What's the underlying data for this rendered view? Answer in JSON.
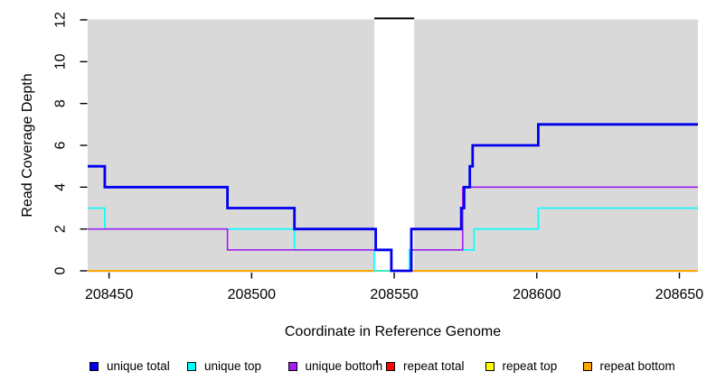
{
  "chart_data": {
    "type": "line",
    "subtype": "step",
    "title": "",
    "xlabel": "Coordinate in Reference Genome",
    "ylabel": "Read Coverage Depth",
    "xlim": [
      208442.5,
      208656.5
    ],
    "ylim": [
      0,
      12
    ],
    "x_ticks": [
      208450,
      208500,
      208550,
      208600,
      208650
    ],
    "y_ticks": [
      0,
      2,
      4,
      6,
      8,
      10,
      12
    ],
    "grid": "off",
    "plot_bg_color": "#d9d9d9",
    "repeat_region_band": {
      "x0": 208543,
      "x1": 208557,
      "color": "#ffffff",
      "clipped_peak_marker": {
        "y": 12,
        "color": "#000000"
      }
    },
    "series": [
      {
        "name": "repeat total",
        "color": "#ff0000",
        "width": 1.6,
        "points": [
          [
            208442.5,
            0
          ],
          [
            208656.5,
            0
          ]
        ]
      },
      {
        "name": "repeat top",
        "color": "#ffff00",
        "width": 1.6,
        "points": [
          [
            208442.5,
            0
          ],
          [
            208656.5,
            0
          ]
        ]
      },
      {
        "name": "repeat bottom",
        "color": "#ffa500",
        "width": 1.8,
        "points": [
          [
            208442.5,
            0
          ],
          [
            208656.5,
            0
          ]
        ]
      },
      {
        "name": "unique top",
        "color": "#00ffff",
        "width": 1.6,
        "points": [
          [
            208442.5,
            3
          ],
          [
            208448.5,
            3
          ],
          [
            208448.5,
            2
          ],
          [
            208515,
            2
          ],
          [
            208515,
            1
          ],
          [
            208543,
            1
          ],
          [
            208543,
            0
          ],
          [
            208555.3,
            0
          ],
          [
            208555.3,
            1
          ],
          [
            208578,
            1
          ],
          [
            208578,
            2
          ],
          [
            208600.5,
            2
          ],
          [
            208600.5,
            3
          ],
          [
            208656.5,
            3
          ]
        ]
      },
      {
        "name": "unique bottom",
        "color": "#a020f0",
        "width": 1.6,
        "points": [
          [
            208442.5,
            2
          ],
          [
            208491.5,
            2
          ],
          [
            208491.5,
            1
          ],
          [
            208549,
            1
          ],
          [
            208549,
            0
          ],
          [
            208555.8,
            0
          ],
          [
            208555.8,
            1
          ],
          [
            208574,
            1
          ],
          [
            208574,
            4
          ],
          [
            208656.5,
            4
          ]
        ]
      },
      {
        "name": "unique total",
        "color": "#0000ee",
        "width": 2.8,
        "points": [
          [
            208442.5,
            5
          ],
          [
            208448.5,
            5
          ],
          [
            208448.5,
            4
          ],
          [
            208491.5,
            4
          ],
          [
            208491.5,
            3
          ],
          [
            208515,
            3
          ],
          [
            208515,
            2
          ],
          [
            208543.5,
            2
          ],
          [
            208543.5,
            1
          ],
          [
            208549,
            1
          ],
          [
            208549,
            0
          ],
          [
            208556,
            0
          ],
          [
            208556,
            2
          ],
          [
            208573.5,
            2
          ],
          [
            208573.5,
            3
          ],
          [
            208574.5,
            3
          ],
          [
            208574.5,
            4
          ],
          [
            208576.5,
            4
          ],
          [
            208576.5,
            5
          ],
          [
            208577.5,
            5
          ],
          [
            208577.5,
            6
          ],
          [
            208600.5,
            6
          ],
          [
            208600.5,
            7
          ],
          [
            208656.5,
            7
          ]
        ]
      }
    ],
    "legend": [
      {
        "label": "unique total",
        "color": "#0000ee"
      },
      {
        "label": "unique top",
        "color": "#00ffff"
      },
      {
        "label": "unique bottom",
        "color": "#a020f0"
      },
      {
        "label": "repeat total",
        "color": "#ff0000"
      },
      {
        "label": "repeat top",
        "color": "#ffff00"
      },
      {
        "label": "repeat bottom",
        "color": "#ffa500"
      }
    ],
    "legend_position": "bottom",
    "annotations": {
      "stray_mark": "tiny black tick between 'unique bottom' and 'repeat total' legend entries"
    }
  }
}
